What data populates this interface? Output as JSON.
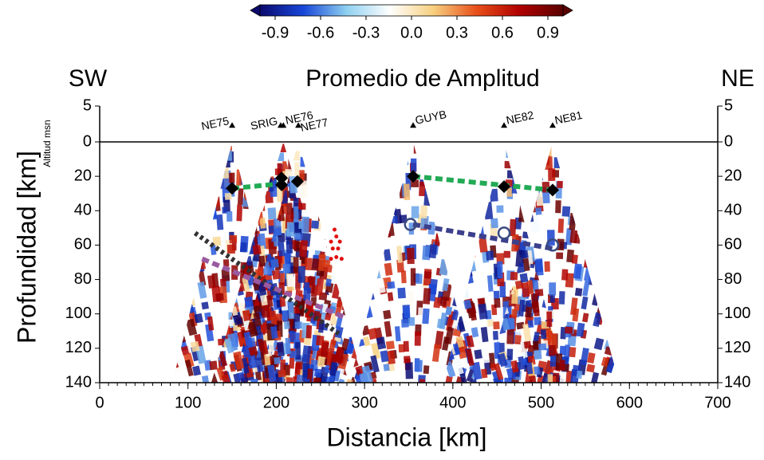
{
  "chart_data": {
    "type": "scatter",
    "title": "Promedio de Amplitud",
    "left_label": "SW",
    "right_label": "NE",
    "x_label": "Distancia [km]",
    "y_label": "Profundidad [km]",
    "altitude_label": "Altitud msn",
    "xlim": [
      0,
      700
    ],
    "xticks": [
      0,
      100,
      200,
      300,
      400,
      500,
      600,
      700
    ],
    "ylim": [
      -5,
      140
    ],
    "yticks": [
      {
        "value": -5,
        "label": "5"
      },
      0,
      20,
      40,
      60,
      80,
      100,
      120,
      140
    ],
    "colorbar": {
      "lim": [
        -1,
        1
      ],
      "ticks": [
        -0.9,
        -0.6,
        -0.3,
        {
          "value": 0,
          "label": "0.0"
        },
        0.3,
        0.6,
        0.9
      ],
      "colors": [
        "#0a0a6e",
        "#1846d8",
        "#8fd0f0",
        "#ffffff",
        "#f7d080",
        "#e8501a",
        "#b00000",
        "#5a0000"
      ]
    },
    "stations": {
      "labels": [
        "NE75",
        "SRIG",
        "NE76",
        "NE77",
        "GUYB",
        "NE82",
        "NE81"
      ],
      "x": [
        150,
        205,
        208,
        225,
        355,
        458,
        513
      ],
      "y": [
        -2.3,
        -2.3,
        -2.3,
        -2.3,
        -2.3,
        -2.3,
        -2.3
      ]
    },
    "series": [
      {
        "marker": "diamond",
        "color": "#000000",
        "x": [
          150,
          206,
          206,
          224,
          355,
          458,
          513
        ],
        "values": [
          27,
          21,
          25,
          23,
          20,
          26,
          28
        ]
      },
      {
        "marker": "circle",
        "color": "#3a4a80",
        "x": [
          352,
          458,
          513
        ],
        "values": [
          48,
          53,
          60
        ]
      },
      {
        "marker": "dot",
        "color": "#e01010",
        "x": [
          266,
          268,
          262,
          272,
          264,
          270,
          262,
          268,
          274
        ],
        "values": [
          51,
          55,
          58,
          58,
          62,
          62,
          68,
          67,
          68
        ]
      },
      {
        "marker": "line",
        "dash": "dash",
        "color": "#22aa55",
        "x": [
          150,
          212
        ],
        "values": [
          27,
          24
        ]
      },
      {
        "marker": "line",
        "dash": "dash",
        "color": "#22aa55",
        "x": [
          355,
          513
        ],
        "values": [
          20,
          28
        ]
      },
      {
        "marker": "line",
        "dash": "dash",
        "color": "#3b3f8c",
        "x": [
          355,
          513
        ],
        "values": [
          48,
          62
        ]
      },
      {
        "marker": "line",
        "dash": "dot",
        "color": "#333333",
        "x": [
          108,
          272
        ],
        "values": [
          53,
          112
        ]
      },
      {
        "marker": "line",
        "dash": "dash",
        "color": "#9a5aa0",
        "x": [
          116,
          278
        ],
        "values": [
          68,
          102
        ]
      }
    ]
  }
}
